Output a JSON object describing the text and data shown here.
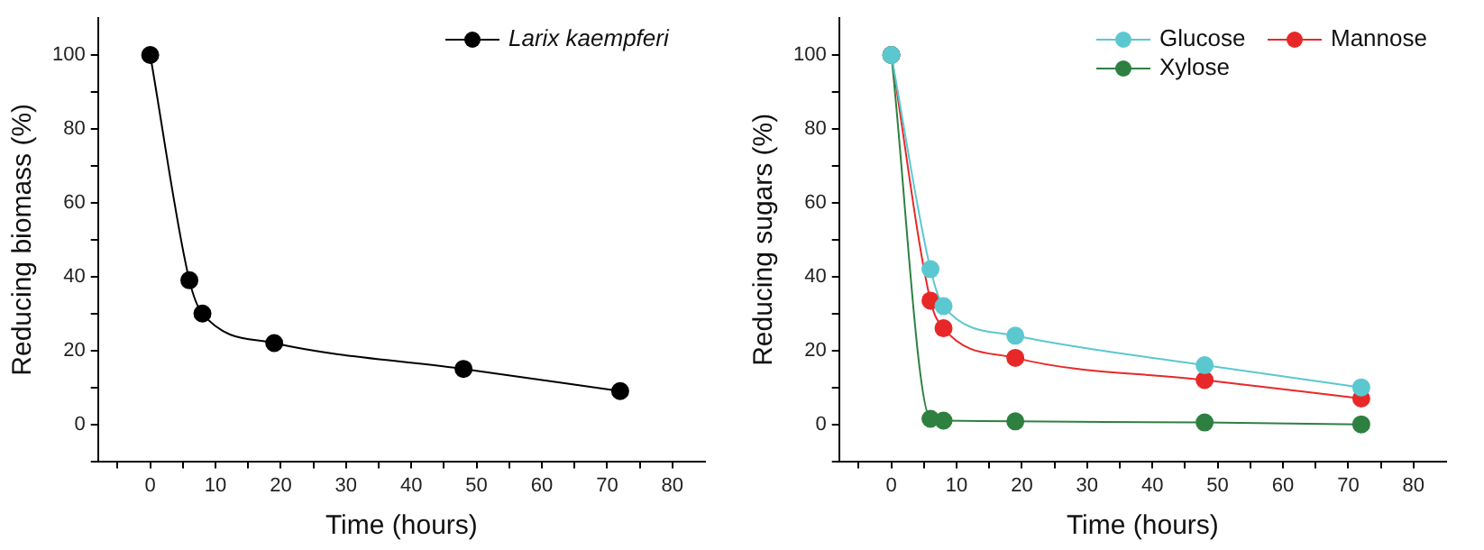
{
  "chart_data": [
    {
      "type": "line",
      "xlabel": "Time (hours)",
      "ylabel": "Reducing biomass (%)",
      "x": [
        0,
        6,
        8,
        19,
        48,
        72
      ],
      "series": [
        {
          "name": "Larix kaempferi",
          "color": "#000000",
          "values": [
            100,
            39,
            30,
            22,
            15,
            9
          ]
        }
      ],
      "xlim": [
        -8,
        85
      ],
      "ylim": [
        -10,
        110
      ],
      "xticks": [
        {
          "value": -5,
          "label": null
        },
        0,
        {
          "value": 5,
          "label": null
        },
        10,
        {
          "value": 15,
          "label": null
        },
        20,
        {
          "value": 25,
          "label": null
        },
        30,
        {
          "value": 35,
          "label": null
        },
        40,
        {
          "value": 45,
          "label": null
        },
        50,
        {
          "value": 55,
          "label": null
        },
        60,
        {
          "value": 65,
          "label": null
        },
        70,
        {
          "value": 75,
          "label": null
        },
        80
      ],
      "yticks": [
        {
          "value": -10,
          "label": null
        },
        0,
        {
          "value": 10,
          "label": null
        },
        20,
        {
          "value": 30,
          "label": null
        },
        40,
        {
          "value": 50,
          "label": null
        },
        60,
        {
          "value": 70,
          "label": null
        },
        80,
        {
          "value": 90,
          "label": null
        },
        100
      ],
      "grid": false,
      "legend": "top right",
      "marker": "circle",
      "line_style": "solid"
    },
    {
      "type": "line",
      "xlabel": "Time (hours)",
      "ylabel": "Reducing sugars (%)",
      "x": [
        0,
        6,
        8,
        19,
        48,
        72
      ],
      "series": [
        {
          "name": "Glucose",
          "color": "#5bc8d0",
          "values": [
            100,
            42,
            32,
            24,
            16,
            10
          ]
        },
        {
          "name": "Xylose",
          "color": "#2e8040",
          "values": [
            100,
            1.5,
            1,
            0.8,
            0.5,
            0
          ]
        },
        {
          "name": "Mannose",
          "color": "#e82828",
          "values": [
            100,
            33.5,
            26,
            18,
            12,
            7
          ]
        }
      ],
      "xlim": [
        -8,
        85
      ],
      "ylim": [
        -10,
        110
      ],
      "xticks": [
        {
          "value": -5,
          "label": null
        },
        0,
        {
          "value": 5,
          "label": null
        },
        10,
        {
          "value": 15,
          "label": null
        },
        20,
        {
          "value": 25,
          "label": null
        },
        30,
        {
          "value": 35,
          "label": null
        },
        40,
        {
          "value": 45,
          "label": null
        },
        50,
        {
          "value": 55,
          "label": null
        },
        60,
        {
          "value": 65,
          "label": null
        },
        70,
        {
          "value": 75,
          "label": null
        },
        80
      ],
      "yticks": [
        {
          "value": -10,
          "label": null
        },
        0,
        {
          "value": 10,
          "label": null
        },
        20,
        {
          "value": 30,
          "label": null
        },
        40,
        {
          "value": 50,
          "label": null
        },
        60,
        {
          "value": 70,
          "label": null
        },
        80,
        {
          "value": 90,
          "label": null
        },
        100
      ],
      "grid": false,
      "legend": "top right",
      "marker": "circle",
      "line_style": "solid"
    }
  ]
}
